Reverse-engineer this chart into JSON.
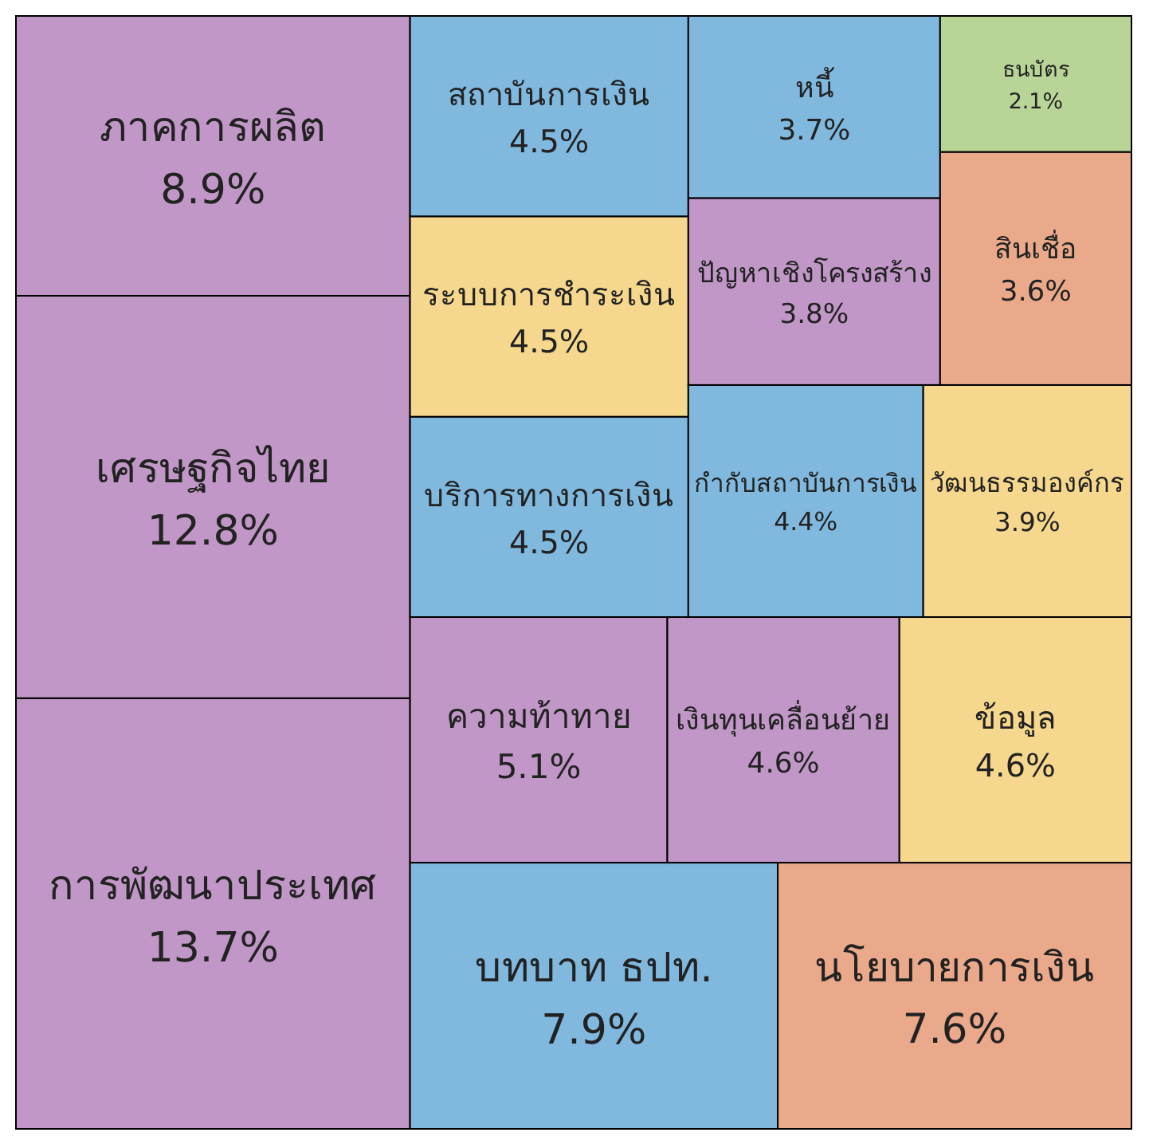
{
  "chart_data": {
    "type": "other",
    "categories": [
      "การพัฒนาประเทศ",
      "เศรษฐกิจไทย",
      "ภาคการผลิต",
      "บทบาท ธปท.",
      "นโยบายการเงิน",
      "ความท้าทาย",
      "เงินทุนเคลื่อนย้าย",
      "ข้อมูล",
      "บริการทางการเงิน",
      "ระบบการชำระเงิน",
      "สถาบันการเงิน",
      "กำกับสถาบันการเงิน",
      "วัฒนธรรมองค์กร",
      "ปัญหาเชิงโครงสร้าง",
      "หนี้",
      "สินเชื่อ",
      "ธนบัตร"
    ],
    "values": [
      13.7,
      12.8,
      8.9,
      7.9,
      7.6,
      5.1,
      4.6,
      4.6,
      4.5,
      4.5,
      4.5,
      4.4,
      3.9,
      3.8,
      3.7,
      3.6,
      2.1
    ],
    "value_labels": [
      "13.7%",
      "12.8%",
      "8.9%",
      "7.9%",
      "7.6%",
      "5.1%",
      "4.6%",
      "4.6%",
      "4.5%",
      "4.5%",
      "4.5%",
      "4.4%",
      "3.9%",
      "3.8%",
      "3.7%",
      "3.6%",
      "2.1%"
    ],
    "colors": [
      "#c097c6",
      "#c097c6",
      "#c097c6",
      "#80b8de",
      "#eaa98a",
      "#c097c6",
      "#c097c6",
      "#f5d78e",
      "#80b8de",
      "#f5d78e",
      "#80b8de",
      "#80b8de",
      "#f5d78e",
      "#c097c6",
      "#80b8de",
      "#eaa98a",
      "#b8d597"
    ]
  }
}
